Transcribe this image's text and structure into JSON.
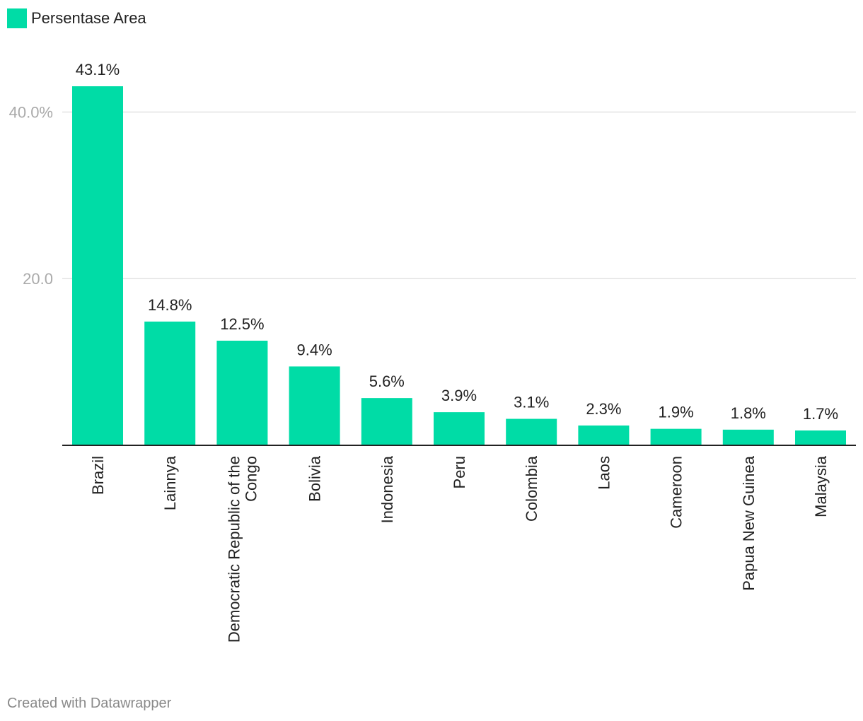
{
  "legend": {
    "label": "Persentase Area"
  },
  "footer": {
    "credit": "Created with Datawrapper"
  },
  "colors": {
    "bar": "#00dca6",
    "grid": "#e2e2e2",
    "axis": "#222222",
    "tick_text": "#aaaaaa",
    "label_text": "#222222"
  },
  "chart_data": {
    "type": "bar",
    "title": "",
    "xlabel": "",
    "ylabel": "",
    "ylim": [
      0,
      45
    ],
    "yticks": [
      {
        "value": 20,
        "label": "20.0"
      },
      {
        "value": 40,
        "label": "40.0%"
      }
    ],
    "grid": true,
    "legend_position": "top-left",
    "categories": [
      "Brazil",
      "Lainnya",
      "Democratic Republic of the Congo",
      "Bolivia",
      "Indonesia",
      "Peru",
      "Colombia",
      "Laos",
      "Cameroon",
      "Papua New Guinea",
      "Malaysia"
    ],
    "series": [
      {
        "name": "Persentase Area",
        "values": [
          43.1,
          14.8,
          12.5,
          9.4,
          5.6,
          3.9,
          3.1,
          2.3,
          1.9,
          1.8,
          1.7
        ],
        "labels": [
          "43.1%",
          "14.8%",
          "12.5%",
          "9.4%",
          "5.6%",
          "3.9%",
          "3.1%",
          "2.3%",
          "1.9%",
          "1.8%",
          "1.7%"
        ]
      }
    ]
  }
}
